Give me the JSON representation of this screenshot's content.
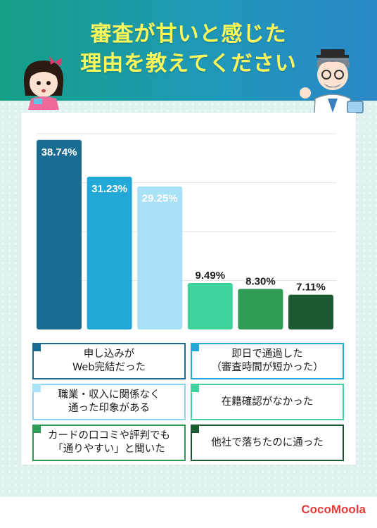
{
  "header": {
    "title_line1": "審査が甘いと感じた",
    "title_line2": "理由を教えてください"
  },
  "colors": {
    "header_start": "#169f86",
    "header_end": "#2a87c7",
    "title": "#fff85a",
    "brand": "#e43b3b"
  },
  "icons": {
    "girl": "girl-character-icon",
    "doctor": "doctor-character-icon"
  },
  "chart_data": {
    "type": "bar",
    "categories": [
      "申し込みが\nWeb完結だった",
      "即日で通過した\n（審査時間が短かった）",
      "職業・収入に関係なく\n通った印象がある",
      "在籍確認がなかった",
      "カードの口コミや評判でも\n「通りやすい」と聞いた",
      "他社で落ちたのに通った"
    ],
    "values": [
      38.74,
      31.23,
      29.25,
      9.49,
      8.3,
      7.11
    ],
    "value_labels": [
      "38.74%",
      "31.23%",
      "29.25%",
      "9.49%",
      "8.30%",
      "7.11%"
    ],
    "colors": [
      "#1b6c92",
      "#22a9d8",
      "#a9e1f7",
      "#3fd39c",
      "#2e9c55",
      "#1b5a32"
    ],
    "ylim": [
      0,
      40
    ],
    "grid": true,
    "legend": "bottom"
  },
  "brand": "CocoMoola"
}
